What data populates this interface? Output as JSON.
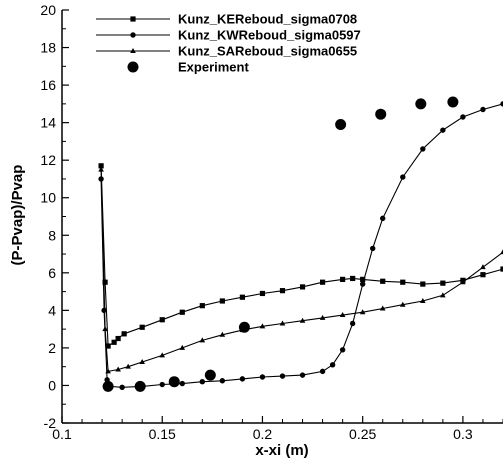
{
  "chart_data": {
    "type": "line",
    "xlabel": "x-xi (m)",
    "ylabel": "(P-Pvap)/Pvap",
    "xlim": [
      0.1,
      0.32
    ],
    "ylim": [
      -2,
      20
    ],
    "x_ticks": [
      "0.1",
      "0.15",
      "0.2",
      "0.25",
      "0.3"
    ],
    "x_tick_values": [
      0.1,
      0.15,
      0.2,
      0.25,
      0.3
    ],
    "y_ticks": [
      "-2",
      "0",
      "2",
      "4",
      "6",
      "8",
      "10",
      "12",
      "14",
      "16",
      "18",
      "20"
    ],
    "y_tick_values": [
      -2,
      0,
      2,
      4,
      6,
      8,
      10,
      12,
      14,
      16,
      18,
      20
    ],
    "grid": false,
    "legend_position": "top-left",
    "series": [
      {
        "name": "Kunz_KEReboud_sigma0708",
        "marker": "square",
        "line": true,
        "points": [
          [
            0.1195,
            11.7
          ],
          [
            0.1215,
            5.5
          ],
          [
            0.123,
            2.1
          ],
          [
            0.126,
            2.3
          ],
          [
            0.128,
            2.5
          ],
          [
            0.131,
            2.75
          ],
          [
            0.14,
            3.1
          ],
          [
            0.15,
            3.5
          ],
          [
            0.16,
            3.9
          ],
          [
            0.17,
            4.25
          ],
          [
            0.18,
            4.5
          ],
          [
            0.19,
            4.7
          ],
          [
            0.2,
            4.9
          ],
          [
            0.21,
            5.05
          ],
          [
            0.22,
            5.25
          ],
          [
            0.23,
            5.5
          ],
          [
            0.24,
            5.65
          ],
          [
            0.245,
            5.7
          ],
          [
            0.25,
            5.65
          ],
          [
            0.26,
            5.55
          ],
          [
            0.27,
            5.5
          ],
          [
            0.28,
            5.4
          ],
          [
            0.29,
            5.45
          ],
          [
            0.3,
            5.6
          ],
          [
            0.31,
            5.9
          ],
          [
            0.32,
            6.2
          ]
        ]
      },
      {
        "name": "Kunz_KWReboud_sigma0597",
        "marker": "circle-small",
        "line": true,
        "points": [
          [
            0.1195,
            11.0
          ],
          [
            0.121,
            4.0
          ],
          [
            0.1225,
            0.3
          ],
          [
            0.124,
            -0.05
          ],
          [
            0.13,
            -0.1
          ],
          [
            0.14,
            -0.05
          ],
          [
            0.15,
            0.05
          ],
          [
            0.16,
            0.1
          ],
          [
            0.17,
            0.2
          ],
          [
            0.18,
            0.25
          ],
          [
            0.19,
            0.35
          ],
          [
            0.2,
            0.45
          ],
          [
            0.21,
            0.5
          ],
          [
            0.22,
            0.55
          ],
          [
            0.23,
            0.75
          ],
          [
            0.235,
            1.1
          ],
          [
            0.24,
            1.9
          ],
          [
            0.245,
            3.3
          ],
          [
            0.25,
            5.4
          ],
          [
            0.255,
            7.3
          ],
          [
            0.26,
            8.9
          ],
          [
            0.27,
            11.1
          ],
          [
            0.28,
            12.6
          ],
          [
            0.29,
            13.6
          ],
          [
            0.3,
            14.3
          ],
          [
            0.31,
            14.7
          ],
          [
            0.32,
            15.0
          ]
        ]
      },
      {
        "name": "Kunz_SAReboud_sigma0655",
        "marker": "triangle",
        "line": true,
        "points": [
          [
            0.1195,
            11.5
          ],
          [
            0.1215,
            3.0
          ],
          [
            0.123,
            0.75
          ],
          [
            0.128,
            0.85
          ],
          [
            0.133,
            1.0
          ],
          [
            0.14,
            1.25
          ],
          [
            0.15,
            1.6
          ],
          [
            0.16,
            2.0
          ],
          [
            0.17,
            2.4
          ],
          [
            0.18,
            2.7
          ],
          [
            0.19,
            2.95
          ],
          [
            0.2,
            3.15
          ],
          [
            0.21,
            3.3
          ],
          [
            0.22,
            3.45
          ],
          [
            0.23,
            3.6
          ],
          [
            0.24,
            3.75
          ],
          [
            0.25,
            3.9
          ],
          [
            0.26,
            4.1
          ],
          [
            0.27,
            4.3
          ],
          [
            0.28,
            4.5
          ],
          [
            0.29,
            4.8
          ],
          [
            0.3,
            5.5
          ],
          [
            0.31,
            6.3
          ],
          [
            0.32,
            7.1
          ]
        ]
      },
      {
        "name": "Experiment",
        "marker": "circle-large",
        "line": false,
        "points": [
          [
            0.123,
            -0.05
          ],
          [
            0.139,
            -0.05
          ],
          [
            0.156,
            0.2
          ],
          [
            0.174,
            0.55
          ],
          [
            0.191,
            3.1
          ],
          [
            0.239,
            13.9
          ],
          [
            0.259,
            14.45
          ],
          [
            0.279,
            15.0
          ],
          [
            0.295,
            15.1
          ]
        ]
      }
    ]
  }
}
